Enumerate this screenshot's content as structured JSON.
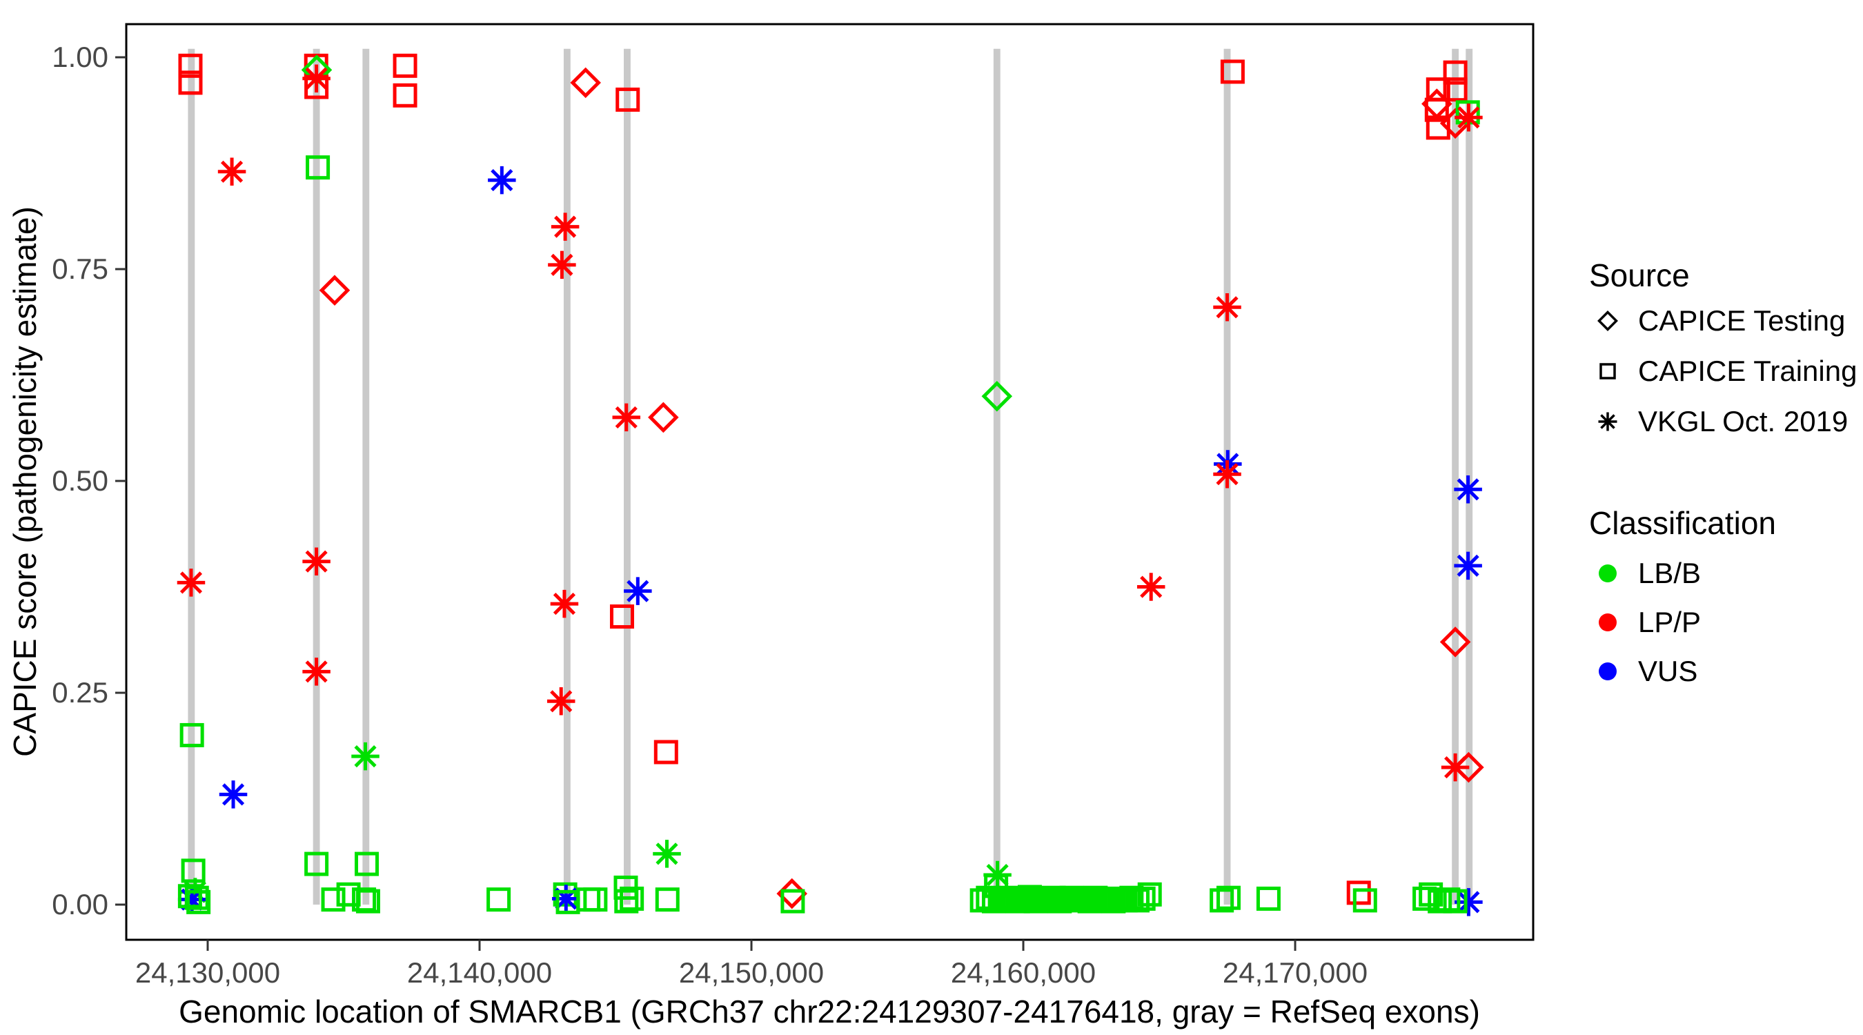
{
  "chart_data": {
    "type": "scatter",
    "title": "",
    "xlabel": "Genomic location of SMARCB1 (GRCh37 chr22:24129307-24176418, gray = RefSeq exons)",
    "ylabel": "CAPICE score (pathogenicity estimate)",
    "x_ticks": [
      {
        "value": 24130000,
        "label": "24,130,000"
      },
      {
        "value": 24140000,
        "label": "24,140,000"
      },
      {
        "value": 24150000,
        "label": "24,150,000"
      },
      {
        "value": 24160000,
        "label": "24,160,000"
      },
      {
        "value": 24170000,
        "label": "24,170,000"
      }
    ],
    "y_ticks": [
      {
        "value": 0.0,
        "label": "0.00"
      },
      {
        "value": 0.25,
        "label": "0.25"
      },
      {
        "value": 0.5,
        "label": "0.50"
      },
      {
        "value": 0.75,
        "label": "0.75"
      },
      {
        "value": 1.0,
        "label": "1.00"
      }
    ],
    "x_range": [
      24127005,
      24178755
    ],
    "y_range": [
      -0.0415,
      1.0391
    ],
    "grid": "off",
    "colors": {
      "LB/B": "#00e000",
      "LP/P": "#ff0000",
      "VUS": "#0000ff",
      "exon": "#c9c9c9",
      "tick_text": "#474747",
      "axis": "#000000"
    },
    "exon_width": 250,
    "exon_span": [
      0.0,
      1.01
    ],
    "exons": [
      24129400,
      24134000,
      24135820,
      24143220,
      24145430,
      24159030,
      24167500,
      24175890,
      24176400
    ],
    "legend": {
      "source": {
        "title": "Source",
        "items": [
          {
            "symbol": "diamond",
            "label": "CAPICE Testing"
          },
          {
            "symbol": "square",
            "label": "CAPICE Training"
          },
          {
            "symbol": "asterisk",
            "label": "VKGL Oct. 2019"
          }
        ]
      },
      "classification": {
        "title": "Classification",
        "items": [
          {
            "label": "LB/B",
            "color": "#00e000"
          },
          {
            "label": "LP/P",
            "color": "#ff0000"
          },
          {
            "label": "VUS",
            "color": "#0000ff"
          }
        ]
      }
    },
    "point_format": [
      "genomic_position",
      "capice_score",
      "source_code",
      "classification_code"
    ],
    "source_codes": {
      "T": "CAPICE Testing",
      "R": "CAPICE Training",
      "V": "VKGL Oct. 2019"
    },
    "class_codes": {
      "B": "LB/B",
      "P": "LP/P",
      "U": "VUS"
    },
    "points": [
      [
        24129365,
        0.99,
        "R",
        "P"
      ],
      [
        24129365,
        0.97,
        "R",
        "P"
      ],
      [
        24129390,
        0.38,
        "V",
        "P"
      ],
      [
        24129420,
        0.2,
        "R",
        "B"
      ],
      [
        24129470,
        0.04,
        "R",
        "B"
      ],
      [
        24129540,
        0.015,
        "V",
        "B"
      ],
      [
        24129420,
        0.006,
        "V",
        "U"
      ],
      [
        24129350,
        0.01,
        "R",
        "B"
      ],
      [
        24129600,
        0.008,
        "R",
        "B"
      ],
      [
        24129660,
        0.003,
        "R",
        "B"
      ],
      [
        24130890,
        0.865,
        "V",
        "P"
      ],
      [
        24130940,
        0.13,
        "V",
        "U"
      ],
      [
        24133990,
        0.99,
        "R",
        "P"
      ],
      [
        24134010,
        0.985,
        "T",
        "B"
      ],
      [
        24134000,
        0.975,
        "V",
        "P"
      ],
      [
        24134000,
        0.965,
        "R",
        "P"
      ],
      [
        24134050,
        0.87,
        "R",
        "B"
      ],
      [
        24134000,
        0.405,
        "V",
        "P"
      ],
      [
        24134000,
        0.275,
        "V",
        "P"
      ],
      [
        24134000,
        0.048,
        "R",
        "B"
      ],
      [
        24134670,
        0.725,
        "T",
        "P"
      ],
      [
        24134620,
        0.006,
        "R",
        "B"
      ],
      [
        24135180,
        0.012,
        "R",
        "B"
      ],
      [
        24135800,
        0.175,
        "V",
        "B"
      ],
      [
        24135850,
        0.048,
        "R",
        "B"
      ],
      [
        24135750,
        0.006,
        "R",
        "B"
      ],
      [
        24135900,
        0.004,
        "R",
        "B"
      ],
      [
        24137260,
        0.99,
        "R",
        "P"
      ],
      [
        24137260,
        0.955,
        "R",
        "P"
      ],
      [
        24140700,
        0.006,
        "R",
        "B"
      ],
      [
        24140820,
        0.855,
        "V",
        "U"
      ],
      [
        24143150,
        0.8,
        "V",
        "P"
      ],
      [
        24143030,
        0.755,
        "V",
        "P"
      ],
      [
        24143120,
        0.355,
        "V",
        "P"
      ],
      [
        24143000,
        0.24,
        "V",
        "P"
      ],
      [
        24143150,
        0.012,
        "R",
        "B"
      ],
      [
        24143180,
        0.007,
        "V",
        "U"
      ],
      [
        24143250,
        0.003,
        "R",
        "B"
      ],
      [
        24143900,
        0.97,
        "T",
        "P"
      ],
      [
        24144000,
        0.006,
        "R",
        "B"
      ],
      [
        24144260,
        0.006,
        "R",
        "B"
      ],
      [
        24145450,
        0.95,
        "R",
        "P"
      ],
      [
        24145400,
        0.575,
        "V",
        "P"
      ],
      [
        24145240,
        0.34,
        "R",
        "P"
      ],
      [
        24145820,
        0.37,
        "V",
        "U"
      ],
      [
        24145380,
        0.02,
        "R",
        "B"
      ],
      [
        24145400,
        0.004,
        "R",
        "B"
      ],
      [
        24145600,
        0.007,
        "R",
        "B"
      ],
      [
        24146760,
        0.575,
        "T",
        "P"
      ],
      [
        24146860,
        0.18,
        "R",
        "P"
      ],
      [
        24146890,
        0.06,
        "V",
        "B"
      ],
      [
        24146910,
        0.006,
        "R",
        "B"
      ],
      [
        24151490,
        0.013,
        "T",
        "P"
      ],
      [
        24151520,
        0.004,
        "R",
        "B"
      ],
      [
        24159030,
        0.6,
        "T",
        "B"
      ],
      [
        24159050,
        0.035,
        "V",
        "B"
      ],
      [
        24159000,
        0.022,
        "R",
        "B"
      ],
      [
        24158480,
        0.005,
        "R",
        "B"
      ],
      [
        24158700,
        0.008,
        "R",
        "B"
      ],
      [
        24158920,
        0.004,
        "R",
        "B"
      ],
      [
        24159140,
        0.007,
        "R",
        "B"
      ],
      [
        24159360,
        0.005,
        "R",
        "B"
      ],
      [
        24159580,
        0.008,
        "R",
        "B"
      ],
      [
        24159800,
        0.004,
        "R",
        "B"
      ],
      [
        24160020,
        0.006,
        "R",
        "B"
      ],
      [
        24160240,
        0.009,
        "R",
        "B"
      ],
      [
        24160460,
        0.004,
        "R",
        "B"
      ],
      [
        24160680,
        0.007,
        "R",
        "B"
      ],
      [
        24160900,
        0.005,
        "R",
        "B"
      ],
      [
        24161120,
        0.008,
        "R",
        "B"
      ],
      [
        24161340,
        0.004,
        "R",
        "B"
      ],
      [
        24161560,
        0.006,
        "R",
        "B"
      ],
      [
        24161780,
        0.008,
        "R",
        "B"
      ],
      [
        24162000,
        0.005,
        "R",
        "B"
      ],
      [
        24162220,
        0.007,
        "R",
        "B"
      ],
      [
        24162440,
        0.004,
        "R",
        "B"
      ],
      [
        24162660,
        0.008,
        "R",
        "B"
      ],
      [
        24162880,
        0.005,
        "R",
        "B"
      ],
      [
        24163100,
        0.006,
        "R",
        "B"
      ],
      [
        24163320,
        0.004,
        "R",
        "B"
      ],
      [
        24163540,
        0.007,
        "R",
        "B"
      ],
      [
        24163760,
        0.005,
        "R",
        "B"
      ],
      [
        24163980,
        0.008,
        "R",
        "B"
      ],
      [
        24164200,
        0.005,
        "R",
        "B"
      ],
      [
        24164420,
        0.007,
        "R",
        "B"
      ],
      [
        24164650,
        0.012,
        "R",
        "B"
      ],
      [
        24164700,
        0.375,
        "V",
        "P"
      ],
      [
        24167700,
        0.983,
        "R",
        "P"
      ],
      [
        24167500,
        0.705,
        "V",
        "P"
      ],
      [
        24167520,
        0.52,
        "V",
        "U"
      ],
      [
        24167500,
        0.508,
        "V",
        "P"
      ],
      [
        24167300,
        0.005,
        "R",
        "B"
      ],
      [
        24167550,
        0.008,
        "R",
        "B"
      ],
      [
        24169020,
        0.007,
        "R",
        "B"
      ],
      [
        24172340,
        0.014,
        "R",
        "P"
      ],
      [
        24172570,
        0.005,
        "R",
        "B"
      ],
      [
        24175260,
        0.962,
        "R",
        "P"
      ],
      [
        24175210,
        0.945,
        "T",
        "P"
      ],
      [
        24175210,
        0.938,
        "R",
        "P"
      ],
      [
        24175260,
        0.917,
        "R",
        "P"
      ],
      [
        24175890,
        0.982,
        "R",
        "P"
      ],
      [
        24175890,
        0.962,
        "R",
        "P"
      ],
      [
        24175890,
        0.922,
        "T",
        "P"
      ],
      [
        24176350,
        0.935,
        "R",
        "B"
      ],
      [
        24176380,
        0.929,
        "V",
        "P"
      ],
      [
        24176360,
        0.49,
        "V",
        "U"
      ],
      [
        24176360,
        0.4,
        "V",
        "U"
      ],
      [
        24175890,
        0.31,
        "T",
        "P"
      ],
      [
        24175890,
        0.162,
        "V",
        "P"
      ],
      [
        24176380,
        0.162,
        "T",
        "P"
      ],
      [
        24176380,
        0.003,
        "V",
        "U"
      ],
      [
        24174760,
        0.007,
        "R",
        "B"
      ],
      [
        24174990,
        0.012,
        "R",
        "B"
      ],
      [
        24175320,
        0.004,
        "R",
        "B"
      ],
      [
        24175630,
        0.006,
        "R",
        "B"
      ],
      [
        24175890,
        0.004,
        "R",
        "B"
      ]
    ]
  }
}
